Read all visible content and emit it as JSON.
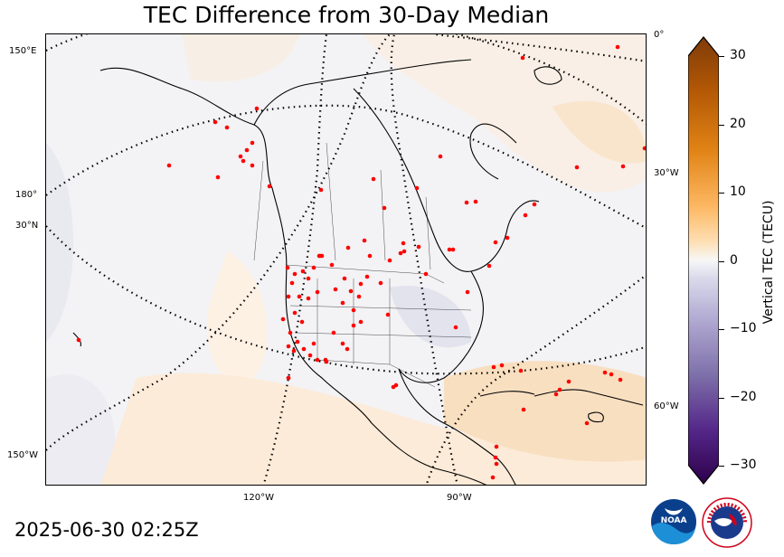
{
  "title": "TEC Difference from 30-Day Median",
  "timestamp": "2025-06-30 02:25Z",
  "lat_labels": {
    "n30": "30°N",
    "w150_top": "150°E",
    "w180": "180°",
    "w150_bottom": "150°W"
  },
  "lon_labels": {
    "w120": "120°W",
    "w90": "90°W",
    "e0": "0°",
    "w30": "30°W",
    "w60": "60°W"
  },
  "colorbar": {
    "label": "Vertical TEC (TECU)",
    "ticks": [
      "30",
      "20",
      "10",
      "0",
      "−10",
      "−20",
      "−30"
    ],
    "range": [
      -30,
      30
    ]
  },
  "logos": {
    "noaa": "NOAA",
    "nws": "NATIONAL WEATHER SERVICE"
  },
  "colors": {
    "positive_max": "#7f3b08",
    "neutral": "#f7f7f7",
    "negative_max": "#2d004b",
    "station": "#ff0000"
  }
}
